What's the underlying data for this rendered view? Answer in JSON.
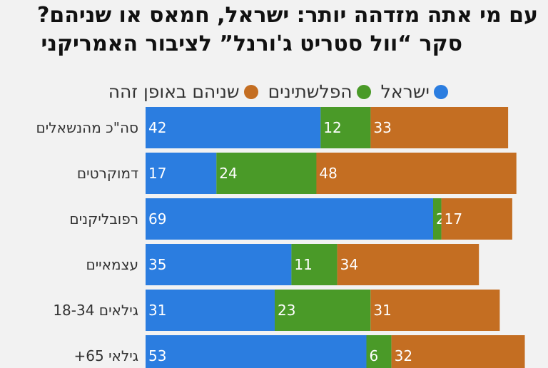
{
  "chart_data": {
    "type": "bar",
    "orientation": "horizontal",
    "stacked": true,
    "title": "עם מי אתה מזדהה יותר: ישראל, חמאס או שניהם?",
    "subtitle": "סקר “וול סטריט ג'ורנל” לציבור האמריקני",
    "categories": [
      "סה\"כ מהנשאלים",
      "דמוקרטים",
      "רפובליקנים",
      "עצמאיים",
      "גילאים 18-34",
      "+גילאי 65"
    ],
    "series": [
      {
        "name": "ישראל",
        "color": "#2b7de0",
        "values": [
          42,
          17,
          69,
          35,
          31,
          53
        ]
      },
      {
        "name": "הפלשתינים",
        "color": "#4a9a28",
        "values": [
          12,
          24,
          2,
          11,
          23,
          6
        ]
      },
      {
        "name": "שניהם באופן זהה",
        "color": "#c46e22",
        "values": [
          33,
          48,
          17,
          34,
          31,
          32
        ]
      }
    ],
    "legend_position": "top",
    "grid": false
  }
}
